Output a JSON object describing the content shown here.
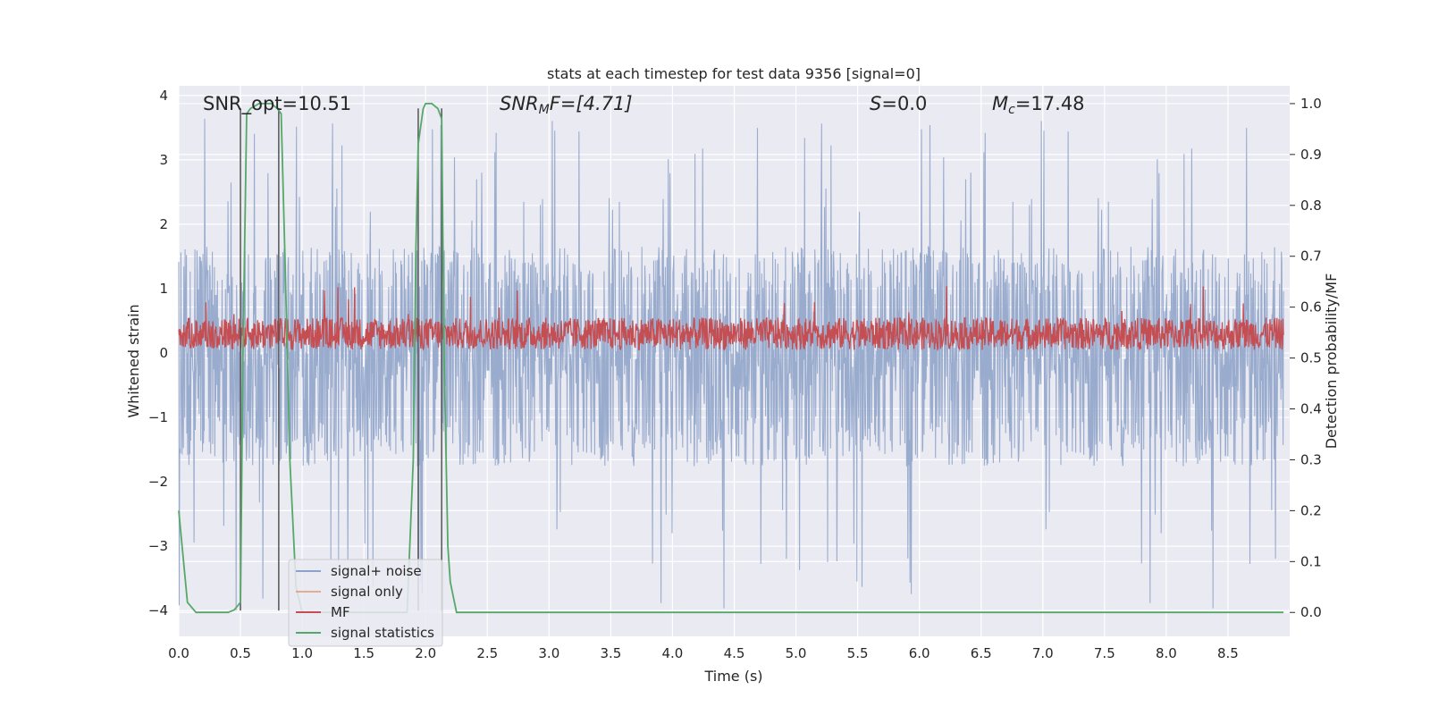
{
  "chart_data": {
    "type": "line",
    "title": "stats at each timestep for test data 9356 [signal=0]",
    "xlabel": "Time (s)",
    "ylabel": "Whitened strain",
    "y2label": "Detection probability/MF",
    "xlim": [
      0.0,
      9.0
    ],
    "ylim": [
      -4.4,
      4.15
    ],
    "y2lim": [
      -0.047,
      1.035
    ],
    "xticks": [
      0.0,
      0.5,
      1.0,
      1.5,
      2.0,
      2.5,
      3.0,
      3.5,
      4.0,
      4.5,
      5.0,
      5.5,
      6.0,
      6.5,
      7.0,
      7.5,
      8.0,
      8.5
    ],
    "xtick_labels": [
      "0.0",
      "0.5",
      "1.0",
      "1.5",
      "2.0",
      "2.5",
      "3.0",
      "3.5",
      "4.0",
      "4.5",
      "5.0",
      "5.5",
      "6.0",
      "6.5",
      "7.0",
      "7.5",
      "8.0",
      "8.5"
    ],
    "yticks": [
      4,
      3,
      2,
      1,
      0,
      -1,
      -2,
      -3,
      -4
    ],
    "ytick_labels": [
      "4",
      "3",
      "2",
      "1",
      "0",
      "−1",
      "−2",
      "−3",
      "−4"
    ],
    "y2ticks": [
      1.0,
      0.9,
      0.8,
      0.7,
      0.6,
      0.5,
      0.4,
      0.3,
      0.2,
      0.1,
      0.0
    ],
    "y2tick_labels": [
      "1.0",
      "0.9",
      "0.8",
      "0.7",
      "0.6",
      "0.5",
      "0.4",
      "0.3",
      "0.2",
      "0.1",
      "0.0"
    ],
    "grid": true,
    "annotations": {
      "snr_opt": "SNR_opt=10.51",
      "snr_mf_base": "SNR",
      "snr_mf_sub": "M",
      "snr_mf_rest": "F=[4.71]",
      "s_var": "S",
      "s_rest": "=0.0",
      "mc_var": "M",
      "mc_sub": "c",
      "mc_rest": "=17.48"
    },
    "legend": {
      "position": "lower-left",
      "entries": [
        {
          "label": "signal+ noise",
          "color": "#4c72b0"
        },
        {
          "label": "signal only",
          "color": "#dd8452"
        },
        {
          "label": "MF",
          "color": "#c44e52"
        },
        {
          "label": "signal statistics",
          "color": "#55a868"
        }
      ]
    },
    "series": [
      {
        "name": "signal+ noise",
        "axis": "left",
        "color": "#9aacce",
        "kind": "noise",
        "amplitude_range": [
          -4.0,
          3.7
        ],
        "typical_band": [
          -1.6,
          1.5
        ]
      },
      {
        "name": "MF",
        "axis": "left",
        "color": "#c44e52",
        "kind": "noise",
        "typical_band": [
          0.05,
          0.55
        ],
        "max": 1.05
      },
      {
        "name": "signal statistics",
        "axis": "right",
        "color": "#55a868",
        "x": [
          0.0,
          0.07,
          0.14,
          0.2,
          0.3,
          0.4,
          0.45,
          0.5,
          0.52,
          0.55,
          0.58,
          0.65,
          0.75,
          0.8,
          0.83,
          0.86,
          0.9,
          0.95,
          1.0,
          1.2,
          1.5,
          1.85,
          1.9,
          1.92,
          1.94,
          1.98,
          2.0,
          2.05,
          2.1,
          2.13,
          2.15,
          2.18,
          2.2,
          2.25,
          2.3,
          3.0,
          5.0,
          8.95
        ],
        "y": [
          0.2,
          0.02,
          0.0,
          0.0,
          0.0,
          0.0,
          0.005,
          0.02,
          0.5,
          0.98,
          0.99,
          1.0,
          1.0,
          0.99,
          0.98,
          0.7,
          0.3,
          0.05,
          0.0,
          0.0,
          0.0,
          0.0,
          0.3,
          0.7,
          0.92,
          0.99,
          1.0,
          1.0,
          0.99,
          0.97,
          0.5,
          0.13,
          0.06,
          0.0,
          0.0,
          0.0,
          0.0,
          0.0
        ]
      }
    ],
    "markers": {
      "vertical_lines_x": [
        0.5,
        0.81,
        1.94,
        2.13
      ],
      "vertical_lines_range": [
        -4.0,
        3.8
      ],
      "color": "#555555"
    }
  }
}
